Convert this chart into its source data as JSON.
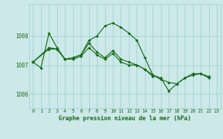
{
  "bg_color": "#cce8e8",
  "grid_color": "#99cccc",
  "line_color": "#1a6b1a",
  "marker_color": "#1a6b1a",
  "title": "Graphe pression niveau de la mer (hPa)",
  "xlim": [
    -0.5,
    23.5
  ],
  "ylim": [
    1005.5,
    1009.1
  ],
  "yticks": [
    1006,
    1007,
    1008
  ],
  "xticks": [
    0,
    1,
    2,
    3,
    4,
    5,
    6,
    7,
    8,
    9,
    10,
    11,
    12,
    13,
    14,
    15,
    16,
    17,
    18,
    19,
    20,
    21,
    22,
    23
  ],
  "s1_x": [
    0,
    1,
    2,
    3,
    4,
    5,
    6,
    7,
    8,
    9,
    10,
    11,
    12,
    13,
    14,
    15,
    16,
    17,
    18,
    19,
    20,
    21,
    22
  ],
  "s1_y": [
    1007.1,
    1006.9,
    1008.1,
    1007.6,
    1007.2,
    1007.25,
    1007.35,
    1007.85,
    1008.0,
    1008.35,
    1008.45,
    1008.3,
    1008.1,
    1007.85,
    1007.25,
    1006.65,
    1006.55,
    1006.1,
    1006.35,
    1006.55,
    1006.7,
    1006.7,
    1006.6
  ],
  "s2_x": [
    0,
    2,
    3,
    4,
    5,
    6,
    7,
    8,
    9,
    10,
    11,
    12,
    13,
    14,
    15,
    16,
    17,
    18,
    19,
    20,
    21,
    22
  ],
  "s2_y": [
    1007.1,
    1007.6,
    1007.55,
    1007.2,
    1007.25,
    1007.35,
    1007.75,
    1007.45,
    1007.25,
    1007.5,
    1007.2,
    1007.1,
    1007.0,
    1006.85,
    1006.65,
    1006.5,
    1006.4,
    1006.35,
    1006.55,
    1006.65,
    1006.7,
    1006.55
  ],
  "s3_x": [
    0,
    2,
    3,
    4,
    5,
    6,
    7,
    8,
    9,
    10,
    11,
    12,
    13,
    14,
    15
  ],
  "s3_y": [
    1007.1,
    1007.55,
    1007.55,
    1007.2,
    1007.2,
    1007.3,
    1007.6,
    1007.35,
    1007.2,
    1007.4,
    1007.1,
    1007.0,
    1007.0,
    1006.85,
    1006.6
  ],
  "figsize": [
    3.2,
    2.0
  ],
  "dpi": 100
}
